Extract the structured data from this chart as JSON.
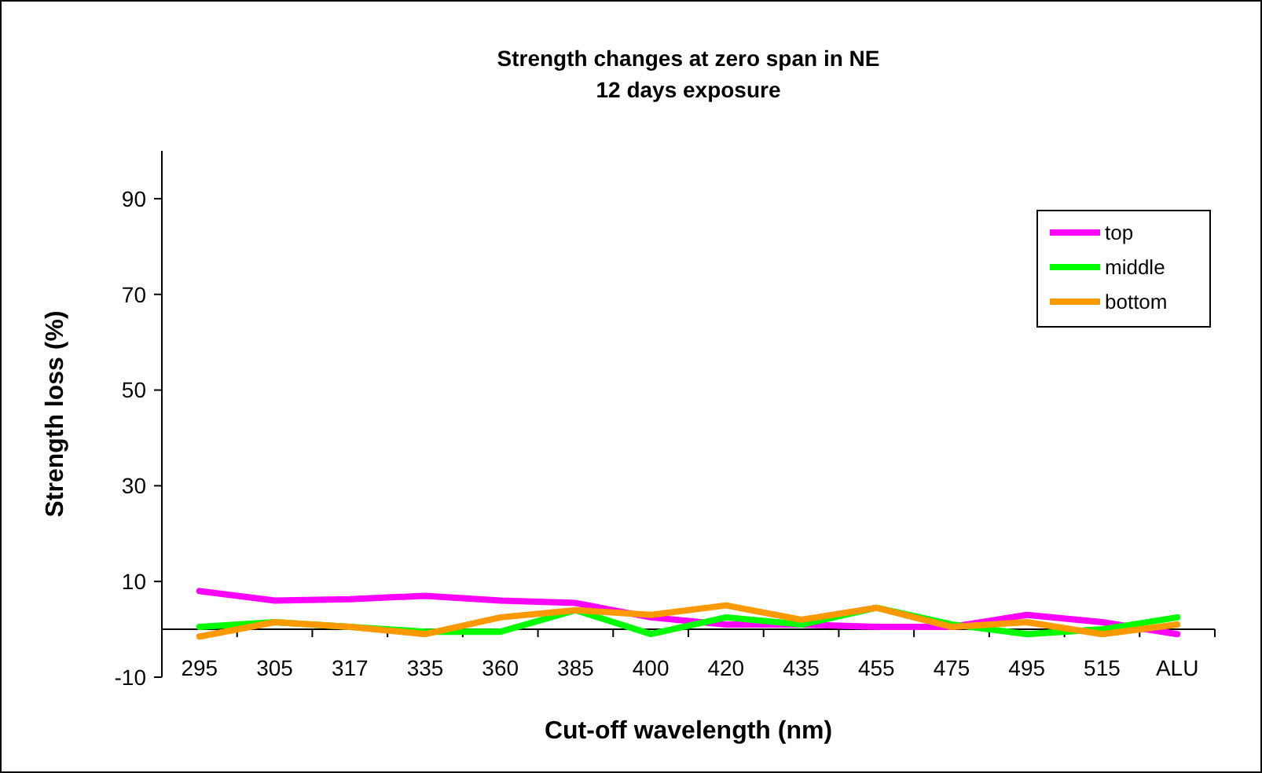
{
  "chart_data": {
    "type": "line",
    "title": "Strength changes at zero span in NE",
    "subtitle": "12 days exposure",
    "xlabel": "Cut-off wavelength (nm)",
    "ylabel": "Strength loss (%)",
    "categories": [
      "295",
      "305",
      "317",
      "335",
      "360",
      "385",
      "400",
      "420",
      "435",
      "455",
      "475",
      "495",
      "515",
      "ALU"
    ],
    "series": [
      {
        "name": "top",
        "color": "#ff00ff",
        "values": [
          8,
          6,
          6.3,
          7,
          6,
          5.5,
          2.5,
          1,
          1,
          0.5,
          0.5,
          3,
          1.5,
          -1
        ]
      },
      {
        "name": "middle",
        "color": "#00ff00",
        "values": [
          0.5,
          1.5,
          0.5,
          -0.5,
          -0.5,
          4,
          -1,
          2.5,
          1,
          4.5,
          1,
          -1,
          0,
          2.5
        ]
      },
      {
        "name": "bottom",
        "color": "#ff9900",
        "values": [
          -1.5,
          1.5,
          0.5,
          -1,
          2.5,
          4,
          3,
          5,
          2,
          4.5,
          0.5,
          1.5,
          -1,
          1
        ]
      }
    ],
    "ylim": [
      -10,
      100
    ],
    "yticks": [
      -10,
      10,
      30,
      50,
      70,
      90
    ],
    "grid": false,
    "legend": "top right",
    "marker": "none",
    "line_style": "solid"
  }
}
